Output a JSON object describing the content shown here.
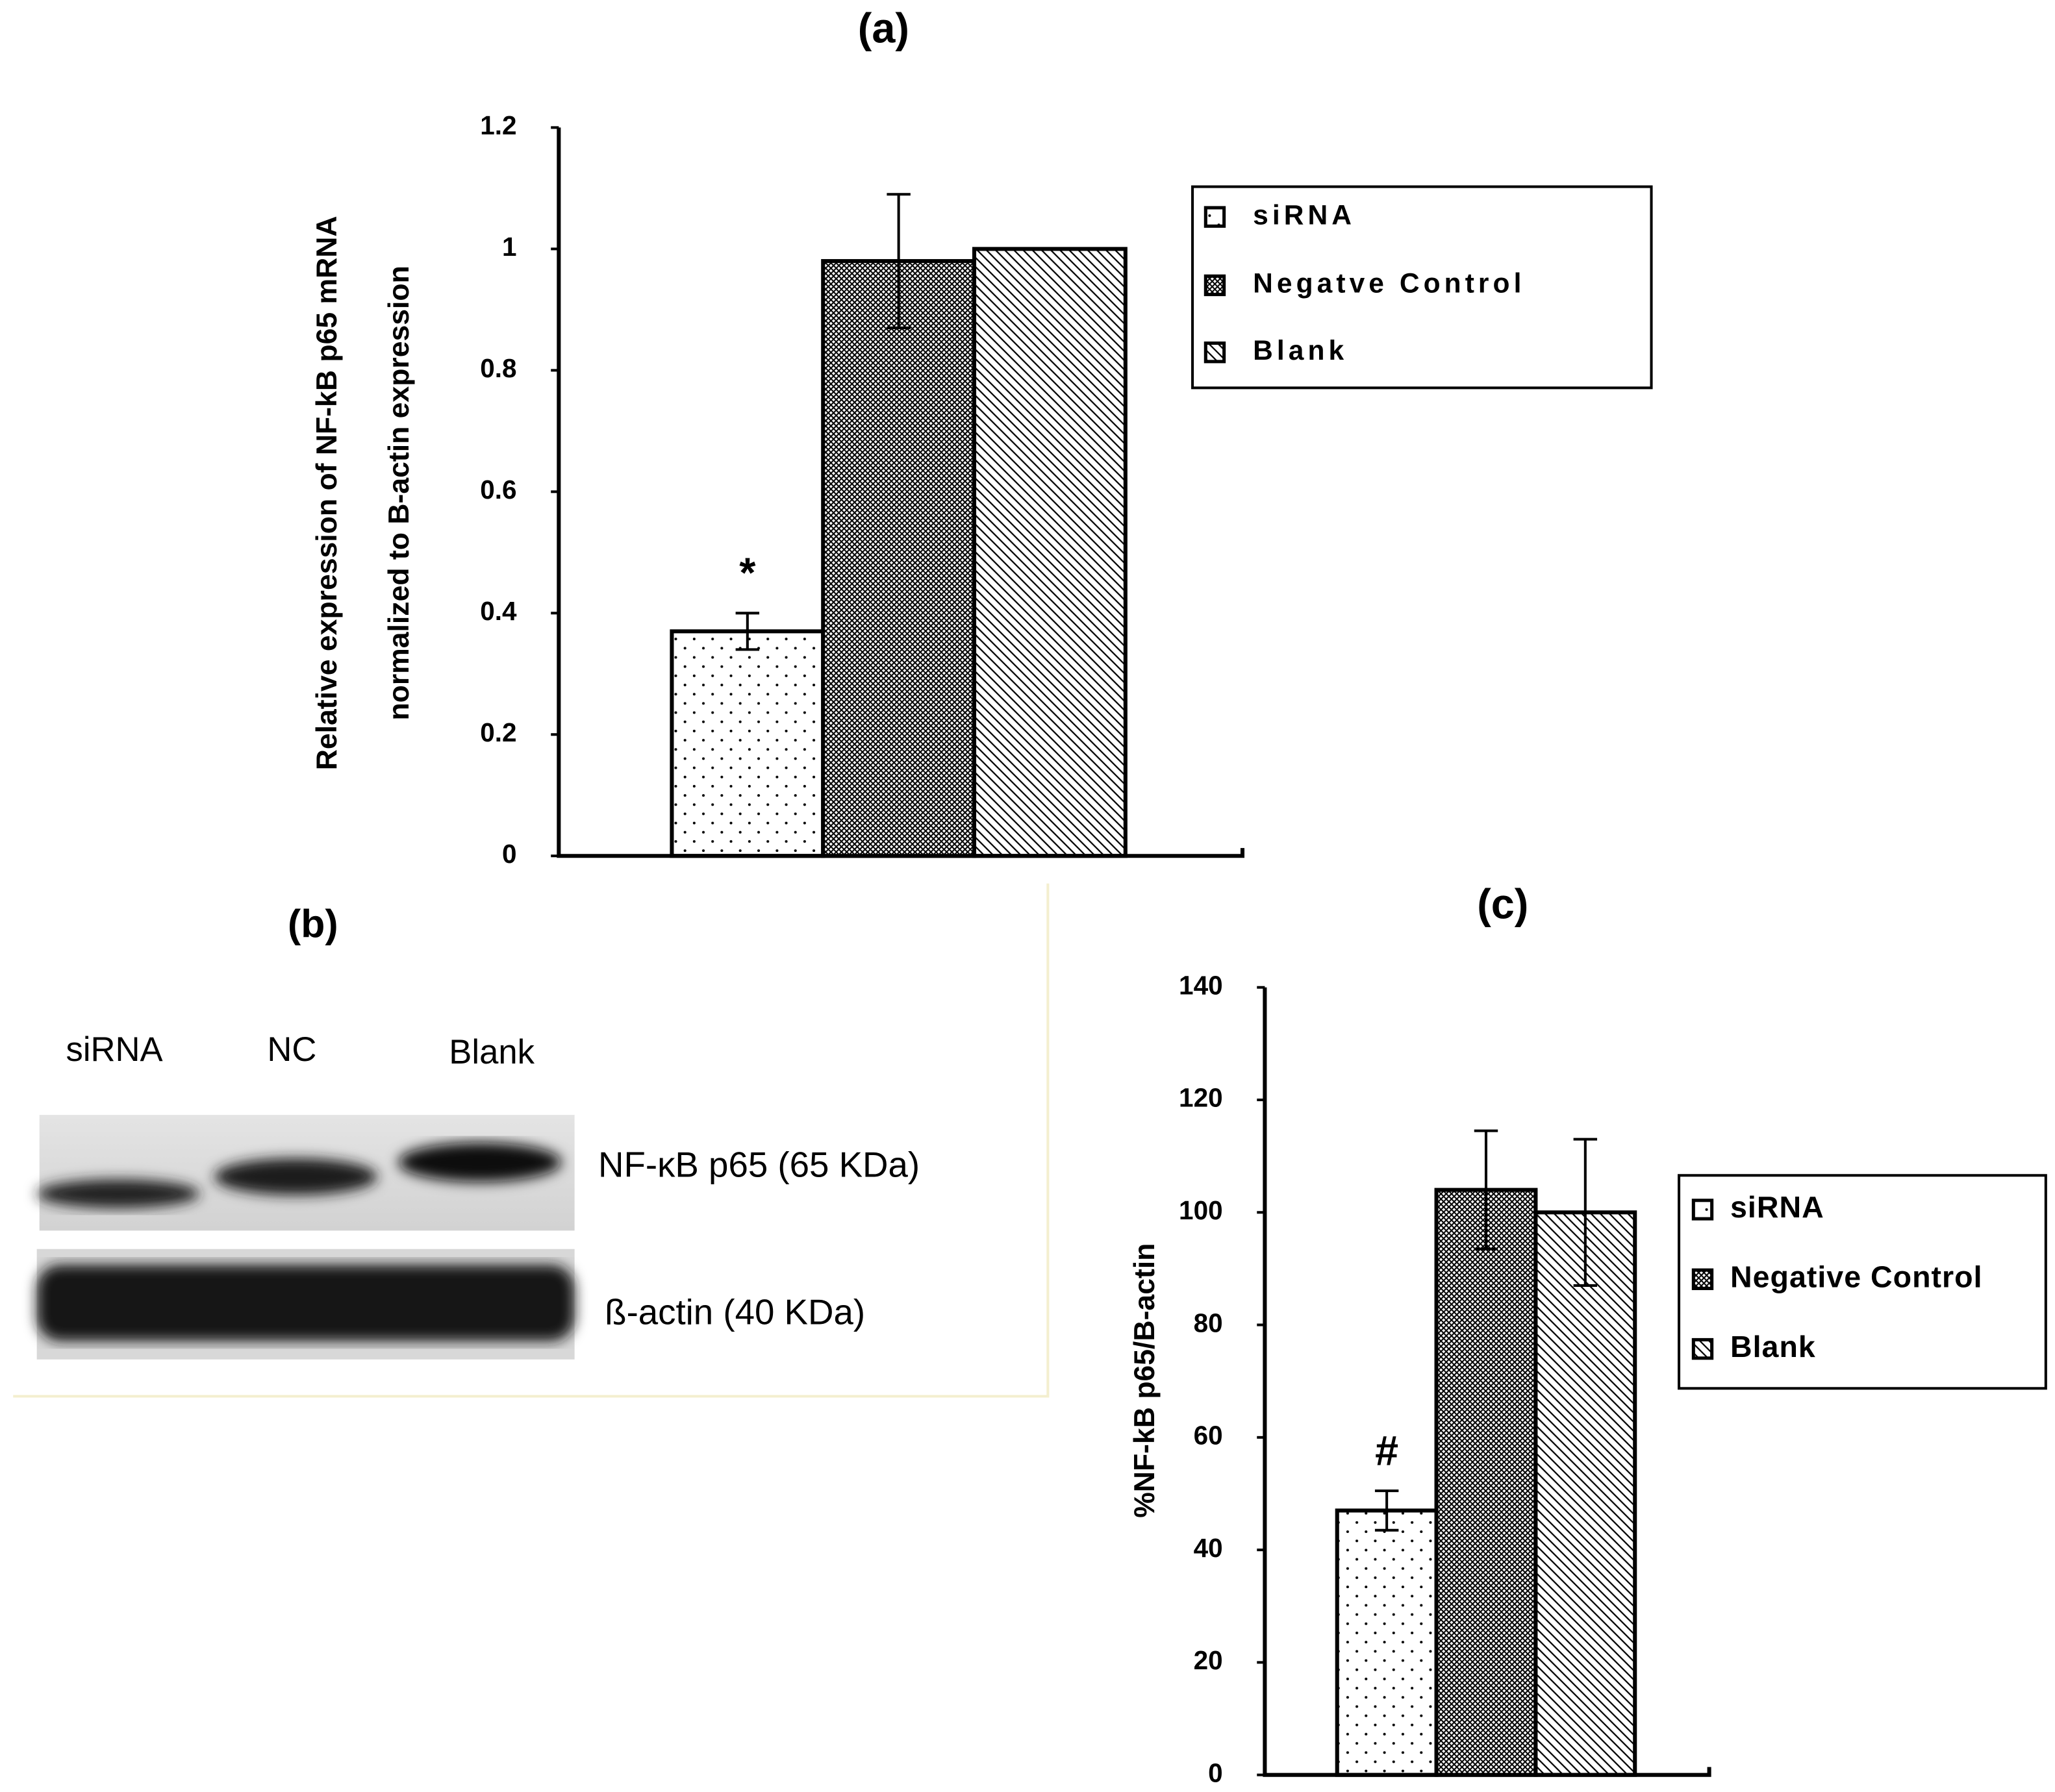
{
  "chart_data": [
    {
      "type": "bar",
      "title": "(a)",
      "ylabel": [
        "Relative expression of NF-kB p65 mRNA",
        "normalized to B-actin expression"
      ],
      "ylim": [
        0,
        1.2
      ],
      "yticks": [
        0,
        0.2,
        0.4,
        0.6,
        0.8,
        1,
        1.2
      ],
      "annotation": "*",
      "legend": "right",
      "series": [
        {
          "name": "siRNA",
          "color": "#ffffff",
          "pattern": "dots",
          "values": [
            0.37
          ],
          "errors": [
            0.03
          ]
        },
        {
          "name": "Negatve Control",
          "color": "#888888",
          "pattern": "cross",
          "values": [
            0.98
          ],
          "errors": [
            0.11
          ]
        },
        {
          "name": "Blank",
          "color": "#ffffff",
          "pattern": "diagonal",
          "values": [
            1.0
          ],
          "errors": [
            0
          ]
        }
      ]
    },
    {
      "type": "bar",
      "title": "(c)",
      "ylabel": [
        "%NF-kB p65/B-actin"
      ],
      "ylim": [
        0,
        140
      ],
      "yticks": [
        0,
        20,
        40,
        60,
        80,
        100,
        120,
        140
      ],
      "annotation": "#",
      "legend": "right",
      "series": [
        {
          "name": "siRNA",
          "color": "#ffffff",
          "pattern": "dots",
          "values": [
            47
          ],
          "errors": [
            3.5
          ]
        },
        {
          "name": "Negative Control",
          "color": "#888888",
          "pattern": "cross",
          "values": [
            104
          ],
          "errors": [
            10.5
          ]
        },
        {
          "name": "Blank",
          "color": "#ffffff",
          "pattern": "diagonal",
          "values": [
            100
          ],
          "errors": [
            13
          ]
        }
      ]
    }
  ],
  "blot": {
    "title": "(b)",
    "lanes": [
      "siRNA",
      "NC",
      "Blank"
    ],
    "bands": [
      "NF-κB p65 (65 KDa)",
      "ß-actin (40 KDa)"
    ]
  }
}
